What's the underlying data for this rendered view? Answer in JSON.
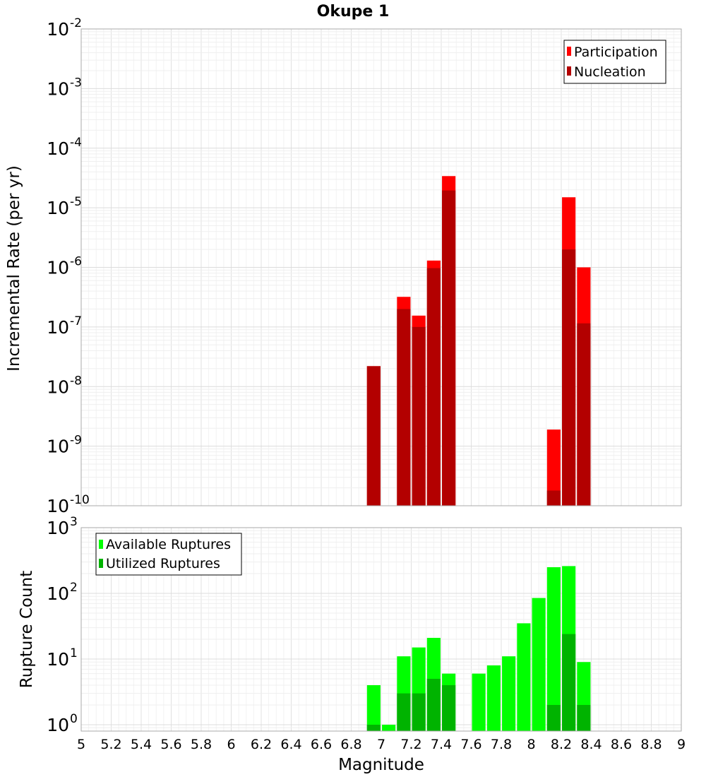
{
  "chart_data": [
    {
      "type": "bar",
      "title": "Okupe 1",
      "xlabel": "Magnitude",
      "ylabel": "Incremental Rate (per yr)",
      "yscale": "log",
      "ylim": [
        1e-10,
        0.01
      ],
      "xlim": [
        5,
        9
      ],
      "x_ticks": [
        "5",
        "5.2",
        "5.4",
        "5.6",
        "5.8",
        "6",
        "6.2",
        "6.4",
        "6.6",
        "6.8",
        "7",
        "7.2",
        "7.4",
        "7.6",
        "7.8",
        "8",
        "8.2",
        "8.4",
        "8.6",
        "8.8",
        "9"
      ],
      "y_ticks": [
        {
          "base": "10",
          "exp": "-2"
        },
        {
          "base": "10",
          "exp": "-3"
        },
        {
          "base": "10",
          "exp": "-4"
        },
        {
          "base": "10",
          "exp": "-5"
        },
        {
          "base": "10",
          "exp": "-6"
        },
        {
          "base": "10",
          "exp": "-7"
        },
        {
          "base": "10",
          "exp": "-8"
        },
        {
          "base": "10",
          "exp": "-9"
        },
        {
          "base": "10",
          "exp": "-10"
        }
      ],
      "grid": true,
      "legend_position": "top-right",
      "series": [
        {
          "name": "Participation",
          "color": "#ff0000",
          "points": [
            [
              6.95,
              2.2e-08
            ],
            [
              7.15,
              3.2e-07
            ],
            [
              7.25,
              1.55e-07
            ],
            [
              7.35,
              1.3e-06
            ],
            [
              7.45,
              3.4e-05
            ],
            [
              8.15,
              1.9e-09
            ],
            [
              8.25,
              1.5e-05
            ],
            [
              8.35,
              1e-06
            ]
          ]
        },
        {
          "name": "Nucleation",
          "color": "#b30000",
          "points": [
            [
              6.95,
              2.2e-08
            ],
            [
              7.15,
              2e-07
            ],
            [
              7.25,
              1e-07
            ],
            [
              7.35,
              9.7e-07
            ],
            [
              7.45,
              1.95e-05
            ],
            [
              8.15,
              1.8e-10
            ],
            [
              8.25,
              2e-06
            ],
            [
              8.35,
              1.15e-07
            ]
          ]
        }
      ]
    },
    {
      "type": "bar",
      "title": "",
      "xlabel": "Magnitude",
      "ylabel": "Rupture Count",
      "yscale": "log",
      "ylim": [
        0.8,
        1000
      ],
      "xlim": [
        5,
        9
      ],
      "y_ticks": [
        {
          "base": "10",
          "exp": "3"
        },
        {
          "base": "10",
          "exp": "2"
        },
        {
          "base": "10",
          "exp": "1"
        },
        {
          "base": "10",
          "exp": "0"
        }
      ],
      "grid": true,
      "legend_position": "top-left",
      "series": [
        {
          "name": "Available Ruptures",
          "color": "#00ff00",
          "points": [
            [
              6.95,
              4
            ],
            [
              7.05,
              1
            ],
            [
              7.15,
              11
            ],
            [
              7.25,
              15
            ],
            [
              7.35,
              21
            ],
            [
              7.45,
              6
            ],
            [
              7.65,
              6
            ],
            [
              7.75,
              8
            ],
            [
              7.85,
              11
            ],
            [
              7.95,
              35
            ],
            [
              8.05,
              85
            ],
            [
              8.15,
              250
            ],
            [
              8.25,
              260
            ],
            [
              8.35,
              9
            ]
          ]
        },
        {
          "name": "Utilized Ruptures",
          "color": "#00b300",
          "points": [
            [
              6.95,
              1
            ],
            [
              7.15,
              3
            ],
            [
              7.25,
              3
            ],
            [
              7.35,
              5
            ],
            [
              7.45,
              4
            ],
            [
              8.15,
              2
            ],
            [
              8.25,
              24
            ],
            [
              8.35,
              2
            ]
          ]
        }
      ]
    }
  ]
}
